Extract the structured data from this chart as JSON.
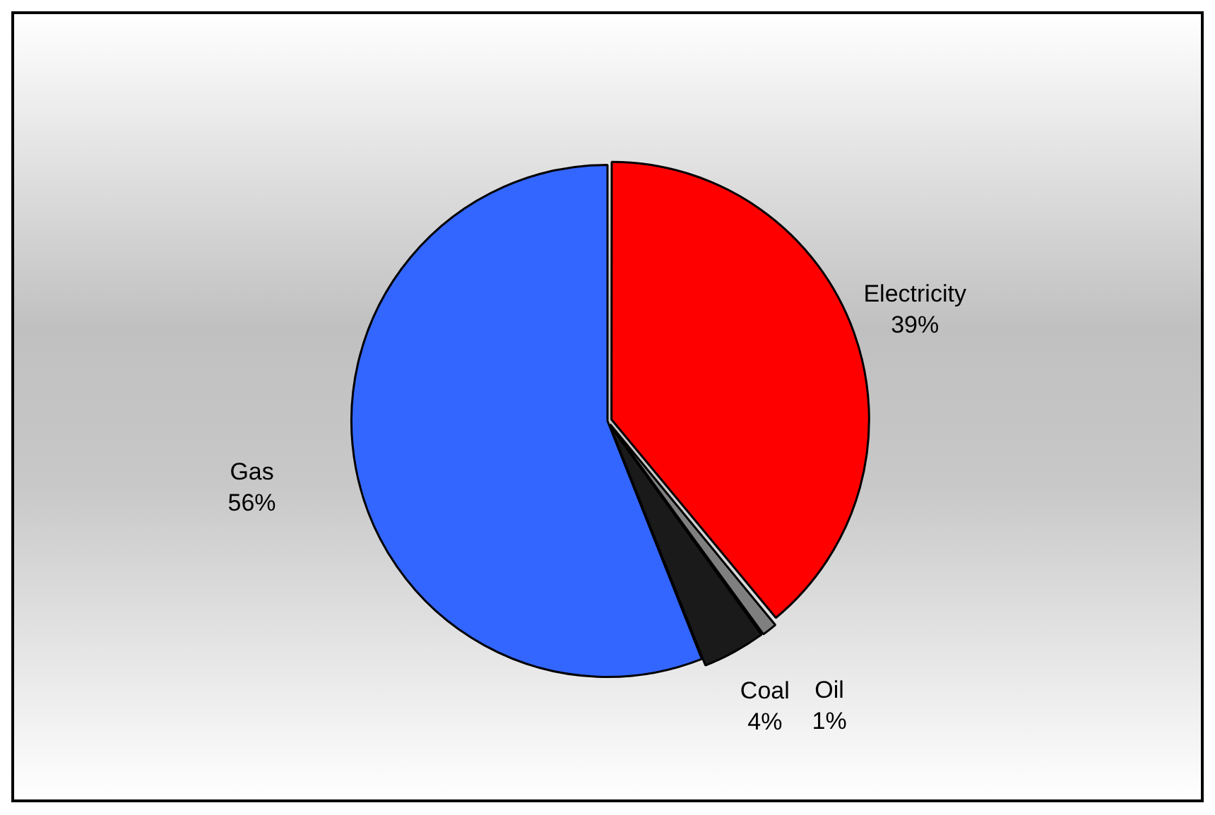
{
  "chart_data": {
    "type": "pie",
    "categories": [
      "Electricity",
      "Oil",
      "Coal",
      "Gas"
    ],
    "values": [
      39,
      1,
      4,
      56
    ],
    "colors": [
      "#ff0000",
      "#7f7f7f",
      "#1a1a1a",
      "#3366ff"
    ],
    "value_labels": [
      "39%",
      "1%",
      "4%",
      "56%"
    ],
    "legend": false
  }
}
